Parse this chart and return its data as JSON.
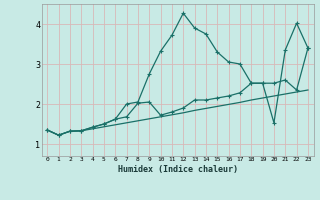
{
  "xlabel": "Humidex (Indice chaleur)",
  "background_color": "#c8eae5",
  "grid_color": "#d8b8b8",
  "line_color": "#1a7068",
  "xlim": [
    -0.5,
    23.5
  ],
  "ylim": [
    0.7,
    4.5
  ],
  "xticks": [
    0,
    1,
    2,
    3,
    4,
    5,
    6,
    7,
    8,
    9,
    10,
    11,
    12,
    13,
    14,
    15,
    16,
    17,
    18,
    19,
    20,
    21,
    22,
    23
  ],
  "yticks": [
    1,
    2,
    3,
    4
  ],
  "line1_x": [
    0,
    1,
    2,
    3,
    4,
    5,
    6,
    7,
    8,
    9,
    10,
    11,
    12,
    13,
    14,
    15,
    16,
    17,
    18,
    19,
    20,
    21,
    22,
    23
  ],
  "line1_y": [
    1.35,
    1.22,
    1.32,
    1.33,
    1.38,
    1.43,
    1.48,
    1.53,
    1.58,
    1.63,
    1.68,
    1.73,
    1.78,
    1.84,
    1.89,
    1.94,
    1.99,
    2.04,
    2.1,
    2.15,
    2.2,
    2.25,
    2.3,
    2.35
  ],
  "line2_x": [
    0,
    1,
    2,
    3,
    4,
    5,
    6,
    7,
    8,
    9,
    10,
    11,
    12,
    13,
    14,
    15,
    16,
    17,
    18,
    19,
    20,
    21,
    22,
    23
  ],
  "line2_y": [
    1.35,
    1.22,
    1.32,
    1.33,
    1.42,
    1.5,
    1.62,
    2.0,
    2.05,
    2.75,
    3.32,
    3.72,
    4.27,
    3.9,
    3.75,
    3.3,
    3.05,
    3.0,
    2.52,
    2.52,
    1.53,
    3.35,
    4.02,
    3.4
  ],
  "line3_x": [
    0,
    1,
    2,
    3,
    4,
    5,
    6,
    7,
    8,
    9,
    10,
    11,
    12,
    13,
    14,
    15,
    16,
    17,
    18,
    19,
    20,
    21,
    22,
    23
  ],
  "line3_y": [
    1.35,
    1.22,
    1.32,
    1.33,
    1.42,
    1.5,
    1.62,
    1.68,
    2.02,
    2.05,
    1.72,
    1.8,
    1.9,
    2.1,
    2.1,
    2.15,
    2.2,
    2.28,
    2.52,
    2.52,
    2.52,
    2.6,
    2.35,
    3.4
  ]
}
